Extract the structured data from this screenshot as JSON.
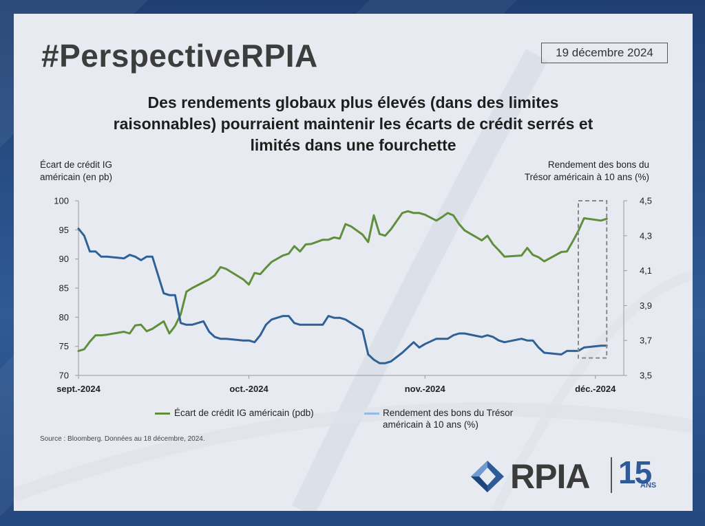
{
  "header": {
    "hashtag": "#PerspectiveRPIA",
    "date": "19 décembre 2024"
  },
  "title_lines": [
    "Des rendements globaux plus élevés (dans des limites",
    "raisonnables) pourraient maintenir les écarts de crédit serrés et",
    "limités dans une fourchette"
  ],
  "axes": {
    "left_title_lines": [
      "Écart de crédit IG",
      "américain (en pb)"
    ],
    "right_title_lines": [
      "Rendement des bons du",
      "Trésor américain à 10 ans (%)"
    ]
  },
  "legend": {
    "spread_label": "Écart de crédit IG américain (pdb)",
    "yield_label_lines": [
      "Rendement des bons du Trésor",
      "américain à 10 ans (%)"
    ]
  },
  "source": "Source : Bloomberg. Données au 18 décembre, 2024.",
  "logo": {
    "name": "RPIA",
    "anniversary": "15",
    "anniversary_suffix": "ANS"
  },
  "colors": {
    "spread": "#5f8f3a",
    "yield": "#2f6096",
    "yield_legend": "#8fbbe6",
    "highlight_box": "#888888",
    "logo_blue": "#2f5a9a"
  },
  "chart_data": {
    "type": "line",
    "x_tick_labels": [
      "sept.-2024",
      "oct.-2024",
      "nov.-2024",
      "déc.-2024"
    ],
    "x_tick_dates": [
      "2024-09-01",
      "2024-10-01",
      "2024-11-01",
      "2024-12-01"
    ],
    "x_range": [
      "2024-09-01",
      "2024-12-06"
    ],
    "y_left": {
      "ylim": [
        70,
        100
      ],
      "ticks": [
        70,
        75,
        80,
        85,
        90,
        95,
        100
      ]
    },
    "y_right": {
      "ylim": [
        3.5,
        4.5
      ],
      "ticks": [
        "3,5",
        "3,7",
        "3,9",
        "4,1",
        "4,3",
        "4,5"
      ],
      "tick_values": [
        3.5,
        3.7,
        3.9,
        4.1,
        4.3,
        4.5
      ]
    },
    "highlight": {
      "x_start": "2024-11-28",
      "x_end": "2024-12-03",
      "y_left_min": 73,
      "y_left_max": 100
    },
    "grid": false,
    "series": [
      {
        "name": "Écart de crédit IG américain (pdb)",
        "axis": "left",
        "x": [
          "2024-09-01",
          "2024-09-02",
          "2024-09-03",
          "2024-09-04",
          "2024-09-05",
          "2024-09-06",
          "2024-09-09",
          "2024-09-10",
          "2024-09-11",
          "2024-09-12",
          "2024-09-13",
          "2024-09-14",
          "2024-09-16",
          "2024-09-17",
          "2024-09-18",
          "2024-09-19",
          "2024-09-20",
          "2024-09-21",
          "2024-09-23",
          "2024-09-24",
          "2024-09-25",
          "2024-09-26",
          "2024-09-27",
          "2024-09-30",
          "2024-10-01",
          "2024-10-02",
          "2024-10-03",
          "2024-10-04",
          "2024-10-05",
          "2024-10-07",
          "2024-10-08",
          "2024-10-09",
          "2024-10-10",
          "2024-10-11",
          "2024-10-12",
          "2024-10-14",
          "2024-10-15",
          "2024-10-16",
          "2024-10-17",
          "2024-10-18",
          "2024-10-19",
          "2024-10-21",
          "2024-10-22",
          "2024-10-23",
          "2024-10-24",
          "2024-10-25",
          "2024-10-26",
          "2024-10-28",
          "2024-10-29",
          "2024-10-30",
          "2024-10-31",
          "2024-11-01",
          "2024-11-03",
          "2024-11-04",
          "2024-11-05",
          "2024-11-06",
          "2024-11-07",
          "2024-11-08",
          "2024-11-11",
          "2024-11-12",
          "2024-11-13",
          "2024-11-14",
          "2024-11-15",
          "2024-11-18",
          "2024-11-19",
          "2024-11-20",
          "2024-11-21",
          "2024-11-22",
          "2024-11-25",
          "2024-11-26",
          "2024-11-27",
          "2024-11-28",
          "2024-11-29",
          "2024-12-02",
          "2024-12-03"
        ],
        "values": [
          74.2,
          74.5,
          75.8,
          76.9,
          76.9,
          77.0,
          77.5,
          77.2,
          78.6,
          78.7,
          77.6,
          78.0,
          79.3,
          77.2,
          78.5,
          80.5,
          84.4,
          85.0,
          86.0,
          86.5,
          87.2,
          88.6,
          88.3,
          86.5,
          85.6,
          87.6,
          87.4,
          88.5,
          89.5,
          90.6,
          90.9,
          92.2,
          91.3,
          92.5,
          92.6,
          93.3,
          93.3,
          93.7,
          93.5,
          96.0,
          95.6,
          94.2,
          92.9,
          97.5,
          94.3,
          94.0,
          95.1,
          97.9,
          98.2,
          97.9,
          97.9,
          97.6,
          96.6,
          97.2,
          97.9,
          97.5,
          96.0,
          94.9,
          93.2,
          94.0,
          92.5,
          91.5,
          90.4,
          90.6,
          91.9,
          90.7,
          90.3,
          89.6,
          91.2,
          91.3,
          93.0,
          94.8,
          97.0,
          96.6,
          96.9
        ]
      },
      {
        "name": "Rendement des bons du Trésor américain à 10 ans (%)",
        "axis": "right",
        "x": [
          "2024-09-01",
          "2024-09-02",
          "2024-09-03",
          "2024-09-04",
          "2024-09-05",
          "2024-09-06",
          "2024-09-09",
          "2024-09-10",
          "2024-09-11",
          "2024-09-12",
          "2024-09-13",
          "2024-09-14",
          "2024-09-16",
          "2024-09-17",
          "2024-09-18",
          "2024-09-19",
          "2024-09-20",
          "2024-09-21",
          "2024-09-23",
          "2024-09-24",
          "2024-09-25",
          "2024-09-26",
          "2024-09-27",
          "2024-09-30",
          "2024-10-01",
          "2024-10-02",
          "2024-10-03",
          "2024-10-04",
          "2024-10-05",
          "2024-10-07",
          "2024-10-08",
          "2024-10-09",
          "2024-10-10",
          "2024-10-11",
          "2024-10-12",
          "2024-10-14",
          "2024-10-15",
          "2024-10-16",
          "2024-10-17",
          "2024-10-18",
          "2024-10-19",
          "2024-10-21",
          "2024-10-22",
          "2024-10-23",
          "2024-10-24",
          "2024-10-25",
          "2024-10-26",
          "2024-10-28",
          "2024-10-29",
          "2024-10-30",
          "2024-10-31",
          "2024-11-01",
          "2024-11-03",
          "2024-11-04",
          "2024-11-05",
          "2024-11-06",
          "2024-11-07",
          "2024-11-08",
          "2024-11-11",
          "2024-11-12",
          "2024-11-13",
          "2024-11-14",
          "2024-11-15",
          "2024-11-18",
          "2024-11-19",
          "2024-11-20",
          "2024-11-21",
          "2024-11-22",
          "2024-11-25",
          "2024-11-26",
          "2024-11-27",
          "2024-11-28",
          "2024-11-29",
          "2024-12-02",
          "2024-12-03"
        ],
        "values": [
          4.34,
          4.3,
          4.21,
          4.21,
          4.18,
          4.18,
          4.17,
          4.19,
          4.18,
          4.16,
          4.18,
          4.18,
          3.97,
          3.96,
          3.96,
          3.8,
          3.79,
          3.79,
          3.81,
          3.75,
          3.72,
          3.71,
          3.71,
          3.7,
          3.7,
          3.69,
          3.73,
          3.79,
          3.82,
          3.84,
          3.84,
          3.8,
          3.79,
          3.79,
          3.79,
          3.79,
          3.84,
          3.83,
          3.83,
          3.82,
          3.8,
          3.76,
          3.62,
          3.59,
          3.57,
          3.57,
          3.58,
          3.63,
          3.66,
          3.69,
          3.66,
          3.68,
          3.71,
          3.71,
          3.71,
          3.73,
          3.74,
          3.74,
          3.72,
          3.73,
          3.72,
          3.7,
          3.69,
          3.71,
          3.7,
          3.7,
          3.66,
          3.63,
          3.62,
          3.64,
          3.64,
          3.64,
          3.66,
          3.67,
          3.67
        ]
      }
    ]
  }
}
